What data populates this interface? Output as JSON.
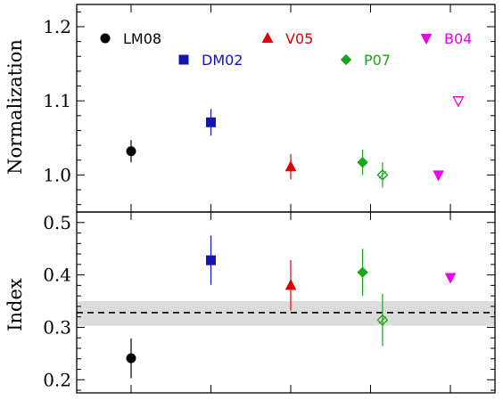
{
  "chart_data": [
    {
      "type": "scatter",
      "panel": "top",
      "ylabel": "Normalization",
      "ylim": [
        0.95,
        1.23
      ],
      "yticks": [
        1.0,
        1.1,
        1.2
      ],
      "ytick_labels": [
        "1.0",
        "1.1",
        "1.2"
      ],
      "categories": [
        "LM08",
        "DM02",
        "V05",
        "P07",
        "B04"
      ],
      "legend": [
        {
          "label": "LM08",
          "marker": "circle",
          "color": "#000000"
        },
        {
          "label": "DM02",
          "marker": "square",
          "color": "#1414b4"
        },
        {
          "label": "V05",
          "marker": "triangle-up",
          "color": "#e00000"
        },
        {
          "label": "P07",
          "marker": "diamond",
          "color": "#1aa51a"
        },
        {
          "label": "B04",
          "marker": "triangle-down",
          "color": "#ee00ee"
        }
      ],
      "points": [
        {
          "series": "LM08",
          "x": 1.0,
          "y": 1.032,
          "err": 0.015,
          "filled": true
        },
        {
          "series": "DM02",
          "x": 2.0,
          "y": 1.071,
          "err": 0.018,
          "filled": true
        },
        {
          "series": "V05",
          "x": 3.0,
          "y": 1.011,
          "err": 0.017,
          "filled": true
        },
        {
          "series": "P07",
          "x": 3.9,
          "y": 1.017,
          "err": 0.017,
          "filled": true
        },
        {
          "series": "P07",
          "x": 4.15,
          "y": 1.0,
          "err": 0.017,
          "filled": false
        },
        {
          "series": "B04",
          "x": 4.85,
          "y": 1.0,
          "err": null,
          "filled": true
        },
        {
          "series": "B04",
          "x": 5.1,
          "y": 1.1,
          "err": null,
          "filled": false
        }
      ]
    },
    {
      "type": "scatter",
      "panel": "bottom",
      "ylabel": "Index",
      "ylim": [
        0.175,
        0.52
      ],
      "yticks": [
        0.2,
        0.3,
        0.4,
        0.5
      ],
      "ytick_labels": [
        "0.2",
        "0.3",
        "0.4",
        "0.5"
      ],
      "reference_line": 0.328,
      "reference_band": [
        0.303,
        0.35
      ],
      "points": [
        {
          "series": "LM08",
          "x": 1.0,
          "y": 0.241,
          "err": 0.038,
          "filled": true
        },
        {
          "series": "DM02",
          "x": 2.0,
          "y": 0.428,
          "err": 0.047,
          "filled": true
        },
        {
          "series": "V05",
          "x": 3.0,
          "y": 0.38,
          "err": 0.048,
          "filled": true
        },
        {
          "series": "P07",
          "x": 3.9,
          "y": 0.405,
          "err": 0.045,
          "filled": true
        },
        {
          "series": "P07",
          "x": 4.15,
          "y": 0.314,
          "err": 0.05,
          "filled": false
        },
        {
          "series": "B04",
          "x": 5.0,
          "y": 0.395,
          "err": null,
          "filled": true
        }
      ]
    }
  ]
}
